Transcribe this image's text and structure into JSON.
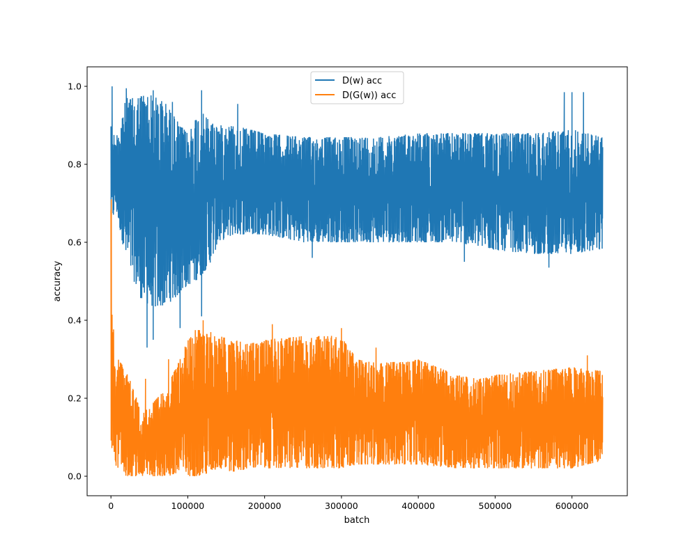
{
  "chart_data": {
    "type": "line",
    "title": "",
    "xlabel": "batch",
    "ylabel": "accuracy",
    "xlim": [
      -31000,
      672000
    ],
    "ylim": [
      -0.05,
      1.05
    ],
    "xticks": [
      0,
      100000,
      200000,
      300000,
      400000,
      500000,
      600000
    ],
    "xtick_labels": [
      "0",
      "100000",
      "200000",
      "300000",
      "400000",
      "500000",
      "600000"
    ],
    "yticks": [
      0.0,
      0.2,
      0.4,
      0.6,
      0.8,
      1.0
    ],
    "ytick_labels": [
      "0.0",
      "0.2",
      "0.4",
      "0.6",
      "0.8",
      "1.0"
    ],
    "grid": false,
    "legend_position": "upper center",
    "x_max": 640000,
    "series": [
      {
        "name": "D(w) acc",
        "color": "#1f77b4",
        "x": [
          0,
          5000,
          10000,
          20000,
          30000,
          40000,
          50000,
          60000,
          70000,
          80000,
          90000,
          100000,
          110000,
          120000,
          130000,
          140000,
          160000,
          180000,
          200000,
          250000,
          300000,
          350000,
          400000,
          450000,
          500000,
          550000,
          600000,
          640000
        ],
        "upper": [
          1.0,
          0.85,
          0.9,
          0.97,
          0.97,
          0.98,
          0.98,
          0.97,
          0.96,
          0.93,
          0.9,
          0.88,
          0.92,
          0.93,
          0.91,
          0.9,
          0.9,
          0.89,
          0.88,
          0.87,
          0.87,
          0.87,
          0.88,
          0.88,
          0.88,
          0.88,
          0.89,
          0.87
        ],
        "lower": [
          0.6,
          0.7,
          0.65,
          0.55,
          0.5,
          0.45,
          0.44,
          0.43,
          0.44,
          0.45,
          0.47,
          0.49,
          0.5,
          0.52,
          0.55,
          0.6,
          0.62,
          0.62,
          0.62,
          0.6,
          0.6,
          0.6,
          0.6,
          0.6,
          0.58,
          0.57,
          0.57,
          0.58
        ],
        "spikes_max": [
          [
            1500,
            1.0
          ],
          [
            20000,
            0.995
          ],
          [
            55000,
            0.99
          ],
          [
            80000,
            0.96
          ],
          [
            118000,
            0.99
          ],
          [
            165000,
            0.955
          ],
          [
            590000,
            0.985
          ],
          [
            600000,
            0.985
          ],
          [
            615000,
            0.985
          ]
        ],
        "spikes_min": [
          [
            47000,
            0.33
          ],
          [
            55000,
            0.35
          ],
          [
            90000,
            0.38
          ],
          [
            118000,
            0.41
          ],
          [
            262000,
            0.56
          ],
          [
            460000,
            0.55
          ],
          [
            570000,
            0.535
          ]
        ]
      },
      {
        "name": "D(G(w)) acc",
        "color": "#ff7f0e",
        "x": [
          0,
          1000,
          5000,
          10000,
          20000,
          30000,
          40000,
          50000,
          60000,
          70000,
          80000,
          90000,
          100000,
          110000,
          120000,
          130000,
          140000,
          160000,
          180000,
          200000,
          250000,
          300000,
          320000,
          350000,
          400000,
          450000,
          480000,
          500000,
          550000,
          600000,
          640000
        ],
        "upper": [
          0.72,
          0.45,
          0.33,
          0.3,
          0.27,
          0.22,
          0.16,
          0.18,
          0.2,
          0.22,
          0.26,
          0.3,
          0.35,
          0.38,
          0.37,
          0.37,
          0.36,
          0.35,
          0.34,
          0.35,
          0.36,
          0.36,
          0.3,
          0.29,
          0.3,
          0.26,
          0.25,
          0.26,
          0.27,
          0.28,
          0.27
        ],
        "lower": [
          0.0,
          0.05,
          0.03,
          0.02,
          0.0,
          0.0,
          0.0,
          0.0,
          0.0,
          0.0,
          0.0,
          0.0,
          0.0,
          0.0,
          0.0,
          0.01,
          0.02,
          0.01,
          0.02,
          0.02,
          0.02,
          0.02,
          0.03,
          0.03,
          0.03,
          0.02,
          0.02,
          0.02,
          0.02,
          0.02,
          0.04
        ],
        "spikes_max": [
          [
            500,
            0.71
          ],
          [
            45000,
            0.25
          ],
          [
            75000,
            0.3
          ],
          [
            108000,
            0.34
          ],
          [
            120000,
            0.4
          ],
          [
            210000,
            0.39
          ],
          [
            300000,
            0.38
          ],
          [
            345000,
            0.33
          ],
          [
            620000,
            0.31
          ]
        ],
        "spikes_min": []
      }
    ]
  }
}
